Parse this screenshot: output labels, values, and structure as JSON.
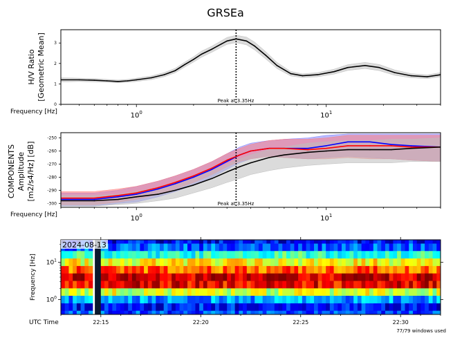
{
  "title": "GRSEa",
  "chart_data": [
    {
      "type": "line",
      "panel": "hv_ratio",
      "ylabel_lines": [
        "H/V Ratio",
        "[Geometric Mean]"
      ],
      "xlabel": "Frequency [Hz]",
      "x_scale": "log",
      "xlim": [
        0.4,
        40
      ],
      "ylim": [
        0,
        3.65
      ],
      "yticks": [
        0,
        1,
        2,
        3
      ],
      "xticks": [
        {
          "value": 1,
          "label": "10^0"
        },
        {
          "value": 10,
          "label": "10^1"
        }
      ],
      "peak": {
        "frequency": 3.35,
        "label": "Peak at 3.35Hz"
      },
      "series": [
        {
          "color": "#000000",
          "band_color": "#bdbdbd",
          "x": [
            0.4,
            0.5,
            0.6,
            0.7,
            0.8,
            0.9,
            1.0,
            1.2,
            1.4,
            1.6,
            1.8,
            2.0,
            2.2,
            2.5,
            2.8,
            3.0,
            3.35,
            3.8,
            4.2,
            4.8,
            5.5,
            6.5,
            7.5,
            9.0,
            11.0,
            13.0,
            16.0,
            19.0,
            23.0,
            28.0,
            34.0,
            40.0
          ],
          "y": [
            1.2,
            1.2,
            1.18,
            1.15,
            1.12,
            1.15,
            1.2,
            1.3,
            1.45,
            1.65,
            1.95,
            2.2,
            2.45,
            2.7,
            2.95,
            3.1,
            3.2,
            3.1,
            2.85,
            2.4,
            1.9,
            1.5,
            1.4,
            1.45,
            1.6,
            1.8,
            1.9,
            1.8,
            1.55,
            1.4,
            1.35,
            1.45
          ],
          "band_low": [
            1.1,
            1.12,
            1.1,
            1.08,
            1.05,
            1.08,
            1.12,
            1.21,
            1.35,
            1.54,
            1.83,
            2.07,
            2.3,
            2.55,
            2.79,
            2.93,
            3.02,
            2.91,
            2.66,
            2.22,
            1.75,
            1.39,
            1.31,
            1.35,
            1.48,
            1.66,
            1.75,
            1.65,
            1.42,
            1.3,
            1.26,
            1.35
          ],
          "band_high": [
            1.3,
            1.28,
            1.26,
            1.22,
            1.19,
            1.22,
            1.28,
            1.39,
            1.55,
            1.76,
            2.07,
            2.33,
            2.6,
            2.85,
            3.11,
            3.27,
            3.38,
            3.29,
            3.04,
            2.58,
            2.05,
            1.61,
            1.49,
            1.55,
            1.72,
            1.94,
            2.05,
            1.95,
            1.68,
            1.5,
            1.44,
            1.55
          ]
        }
      ]
    },
    {
      "type": "line",
      "panel": "components",
      "ylabel_lines": [
        "COMPONENTS",
        "Amplitude",
        "[m2/s4/Hz] [dB]"
      ],
      "xlabel": "Frequency [Hz]",
      "x_scale": "log",
      "xlim": [
        0.4,
        40
      ],
      "ylim": [
        -303,
        -246
      ],
      "yticks": [
        -300,
        -290,
        -280,
        -270,
        -260,
        -250
      ],
      "xticks": [
        {
          "value": 1,
          "label": "10^0"
        },
        {
          "value": 10,
          "label": "10^1"
        }
      ],
      "peak": {
        "frequency": 3.35,
        "label": "Peak at 3.35Hz"
      },
      "series": [
        {
          "color": "#0000ff",
          "band_color": "#8080ff",
          "x": [
            0.4,
            0.6,
            0.8,
            1.0,
            1.3,
            1.6,
            2.0,
            2.5,
            3.0,
            3.5,
            4.0,
            5.0,
            6.0,
            8.0,
            10.0,
            13.0,
            17.0,
            22.0,
            28.0,
            40.0
          ],
          "y": [
            -297,
            -297,
            -295,
            -293,
            -289,
            -285,
            -280,
            -274,
            -268,
            -263,
            -260,
            -258,
            -258,
            -258,
            -256,
            -253,
            -253,
            -255,
            -256,
            -257
          ],
          "band_low": [
            -302,
            -302,
            -300,
            -299,
            -295,
            -291,
            -286,
            -280,
            -274,
            -269,
            -266,
            -264,
            -265,
            -266,
            -265,
            -264,
            -265,
            -266,
            -267,
            -268
          ],
          "band_high": [
            -292,
            -292,
            -290,
            -287,
            -283,
            -279,
            -274,
            -268,
            -262,
            -257,
            -254,
            -252,
            -251,
            -250,
            -248,
            -247,
            -247,
            -247,
            -247,
            -247
          ]
        },
        {
          "color": "#ff0000",
          "band_color": "#ff8080",
          "x": [
            0.4,
            0.6,
            0.8,
            1.0,
            1.3,
            1.6,
            2.0,
            2.5,
            3.0,
            3.5,
            4.0,
            5.0,
            6.0,
            8.0,
            10.0,
            13.0,
            17.0,
            22.0,
            28.0,
            40.0
          ],
          "y": [
            -296,
            -296,
            -294,
            -292,
            -288,
            -284,
            -279,
            -273,
            -267,
            -263,
            -260,
            -258,
            -258,
            -259,
            -258,
            -256,
            -256,
            -256,
            -257,
            -257
          ],
          "band_low": [
            -301,
            -301,
            -299,
            -297,
            -293,
            -289,
            -284,
            -278,
            -272,
            -268,
            -266,
            -264,
            -265,
            -266,
            -266,
            -265,
            -266,
            -266,
            -267,
            -268
          ],
          "band_high": [
            -291,
            -291,
            -289,
            -287,
            -283,
            -279,
            -274,
            -268,
            -262,
            -258,
            -255,
            -252,
            -251,
            -251,
            -250,
            -248,
            -248,
            -248,
            -248,
            -248
          ]
        },
        {
          "color": "#000000",
          "band_color": "#bdbdbd",
          "x": [
            0.4,
            0.6,
            0.8,
            1.0,
            1.3,
            1.6,
            2.0,
            2.5,
            3.0,
            3.5,
            4.0,
            5.0,
            6.0,
            8.0,
            10.0,
            13.0,
            17.0,
            22.0,
            28.0,
            40.0
          ],
          "y": [
            -298,
            -298,
            -297,
            -295,
            -293,
            -290,
            -286,
            -281,
            -276,
            -272,
            -269,
            -265,
            -263,
            -261,
            -260,
            -259,
            -259,
            -259,
            -258,
            -257
          ],
          "band_low": [
            -302,
            -302,
            -301,
            -300,
            -298,
            -296,
            -292,
            -288,
            -284,
            -281,
            -278,
            -275,
            -273,
            -271,
            -270,
            -269,
            -269,
            -269,
            -268,
            -268
          ],
          "band_high": [
            -294,
            -294,
            -293,
            -291,
            -288,
            -284,
            -280,
            -275,
            -270,
            -266,
            -263,
            -259,
            -257,
            -254,
            -253,
            -252,
            -252,
            -251,
            -251,
            -250
          ]
        }
      ]
    },
    {
      "type": "heatmap",
      "panel": "spectrogram",
      "ylabel": "Frequency [Hz]",
      "xlabel": "UTC Time",
      "date_label": "2024-08-13",
      "x_scale": "time",
      "xlim": [
        "22:13",
        "22:32"
      ],
      "y_scale": "log",
      "ylim": [
        0.4,
        40
      ],
      "xtick_labels": [
        "22:15",
        "22:20",
        "22:25",
        "22:30"
      ],
      "ytick_labels": [
        "10^1",
        "10^0"
      ],
      "colormap": "jet",
      "windows_note": "77/79 windows used",
      "rows_freq_hz": [
        40,
        25,
        16,
        10,
        6.3,
        4,
        2.5,
        1.6,
        1.0,
        0.63,
        0.4
      ],
      "profile": [
        0.12,
        0.22,
        0.42,
        0.62,
        0.78,
        0.92,
        0.88,
        0.58,
        0.28,
        0.14,
        0.2
      ],
      "gap": {
        "start": "22:14.7",
        "end": "22:15.0"
      }
    }
  ]
}
